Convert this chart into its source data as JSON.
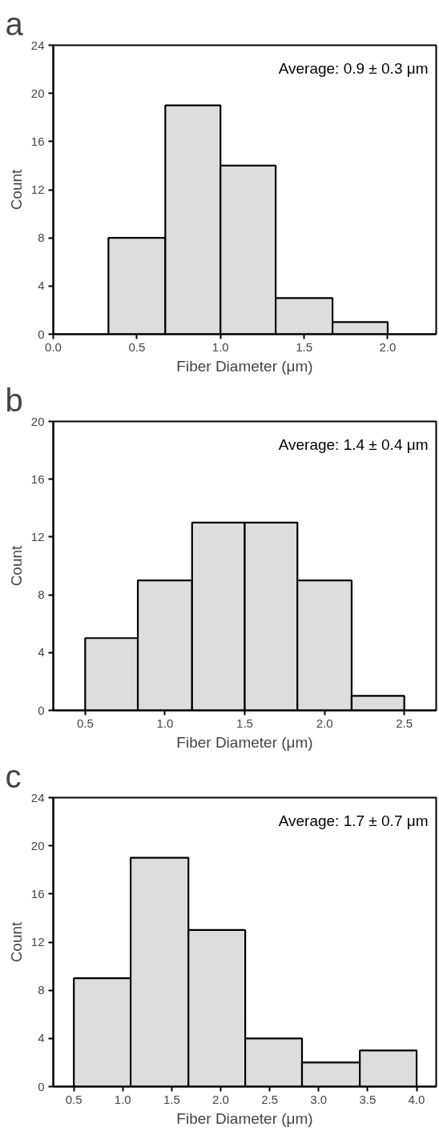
{
  "chart_data": [
    {
      "type": "histogram",
      "title": "a",
      "xlabel": "Fiber Diameter (μm)",
      "ylabel": "Count",
      "annotations": [
        "Average: 0.9 ± 0.3 μm"
      ],
      "bins": [
        0.33,
        0.67,
        1.0,
        1.33,
        1.67,
        2.0
      ],
      "values": [
        8,
        19,
        14,
        3,
        1
      ],
      "color": "#dddddd",
      "xlim": [
        0.0,
        2.29
      ],
      "xticks": [
        {
          "value": 0,
          "label": "0.0"
        },
        0.5,
        {
          "value": 1,
          "label": "1.0"
        },
        1.5,
        {
          "value": 2,
          "label": "2.0"
        }
      ],
      "ylim": [
        0,
        24
      ],
      "yticks": [
        0,
        4,
        8,
        12,
        16,
        20,
        24
      ]
    },
    {
      "type": "histogram",
      "title": "b",
      "xlabel": "Fiber Diameter (μm)",
      "ylabel": "Count",
      "annotations": [
        "Average: 1.4 ± 0.4 μm"
      ],
      "bins": [
        0.5,
        0.83,
        1.17,
        1.5,
        1.83,
        2.17,
        2.5
      ],
      "values": [
        5,
        9,
        13,
        13,
        9,
        1
      ],
      "color": "#dddddd",
      "xlim": [
        0.3,
        2.7
      ],
      "xticks": [
        0.5,
        {
          "value": 1,
          "label": "1.0"
        },
        1.5,
        {
          "value": 2,
          "label": "2.0"
        },
        2.5
      ],
      "ylim": [
        0,
        20
      ],
      "yticks": [
        0,
        4,
        8,
        12,
        16,
        20
      ]
    },
    {
      "type": "histogram",
      "title": "c",
      "xlabel": "Fiber Diameter (μm)",
      "ylabel": "Count",
      "annotations": [
        "Average: 1.7 ± 0.7 μm"
      ],
      "bins": [
        0.5,
        1.08,
        1.67,
        2.25,
        2.83,
        3.42,
        4.0
      ],
      "values": [
        9,
        19,
        13,
        4,
        2,
        3
      ],
      "color": "#dddddd",
      "xlim": [
        0.29,
        4.2
      ],
      "xticks": [
        0.5,
        {
          "value": 1,
          "label": "1.0"
        },
        1.5,
        {
          "value": 2,
          "label": "2.0"
        },
        2.5,
        {
          "value": 3,
          "label": "3.0"
        },
        3.5,
        {
          "value": 4,
          "label": "4.0"
        }
      ],
      "ylim": [
        0,
        24
      ],
      "yticks": [
        0,
        4,
        8,
        12,
        16,
        20,
        24
      ]
    }
  ]
}
